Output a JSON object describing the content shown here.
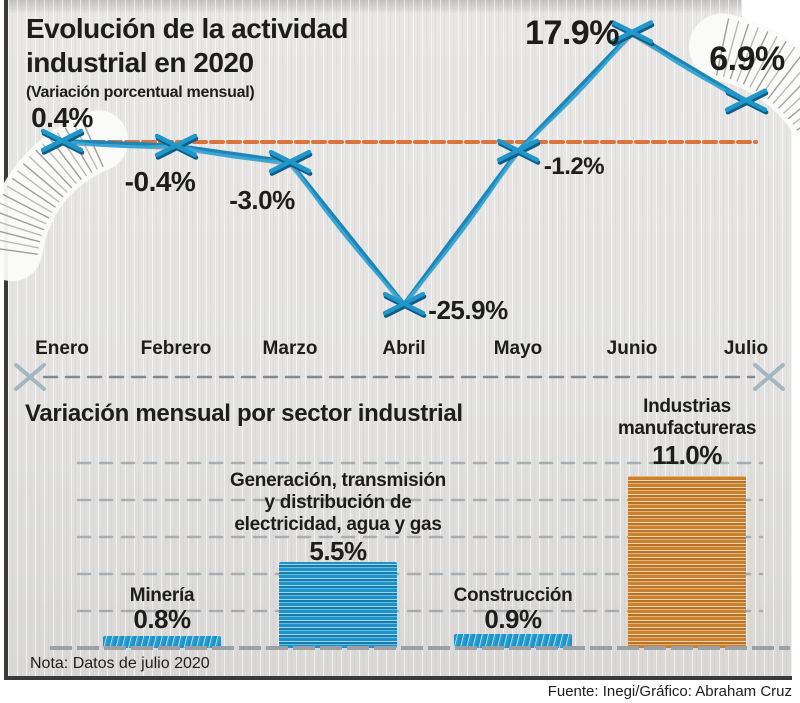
{
  "header": {
    "title_line1": "Evolución de la actividad",
    "title_line2": "industrial en 2020",
    "subtitle": "(Variación porcentual mensual)"
  },
  "section_bar": {
    "title": "Variación mensual por sector industrial"
  },
  "footer": {
    "note": "Nota: Datos de julio 2020",
    "source": "Fuente: Inegi/Gráfico: Abraham Cruz"
  },
  "colors": {
    "line_blue": "#1f97ca",
    "line_blue_dark": "#10628e",
    "zero_line_orange": "#d9743f",
    "bar_blue": "#1f93c8",
    "bar_orange": "#cd8538",
    "grid_gray": "#a0a5a8",
    "divider_gray": "#75828a",
    "divider_x_gray": "#a3b6c2",
    "text": "#1d1d1b"
  },
  "chart_data": [
    {
      "type": "line",
      "title": "Evolución de la actividad industrial en 2020",
      "subtitle": "(Variación porcentual mensual)",
      "x": [
        "Enero",
        "Febrero",
        "Marzo",
        "Abril",
        "Mayo",
        "Junio",
        "Julio"
      ],
      "values": [
        0.4,
        -0.4,
        -3.0,
        -25.9,
        -1.2,
        17.9,
        6.9
      ],
      "point_labels": [
        "0.4%",
        "-0.4%",
        "-3.0%",
        "-25.9%",
        "-1.2%",
        "17.9%",
        "6.9%"
      ],
      "marker": "x",
      "zero_reference_line": true,
      "ylim": [
        -27,
        20
      ],
      "grid": "off",
      "legend": "none"
    },
    {
      "type": "bar",
      "title": "Variación mensual por sector industrial",
      "categories": [
        "Minería",
        "Generación, transmisión y distribución de electricidad, agua y gas",
        "Construcción",
        "Industrias manufactureras"
      ],
      "category_label_lines": [
        [
          "Minería"
        ],
        [
          "Generación, transmisión",
          "y distribución de",
          "electricidad, agua y gas"
        ],
        [
          "Construcción"
        ],
        [
          "Industrias",
          "manufactureras"
        ]
      ],
      "values": [
        0.8,
        5.5,
        0.9,
        11.0
      ],
      "value_labels": [
        "0.8%",
        "5.5%",
        "0.9%",
        "11.0%"
      ],
      "bar_colors": [
        "#1f93c8",
        "#1f93c8",
        "#1f93c8",
        "#cd8538"
      ],
      "ylim": [
        0,
        12
      ],
      "grid": "dashed-horizontal",
      "legend": "none"
    }
  ]
}
